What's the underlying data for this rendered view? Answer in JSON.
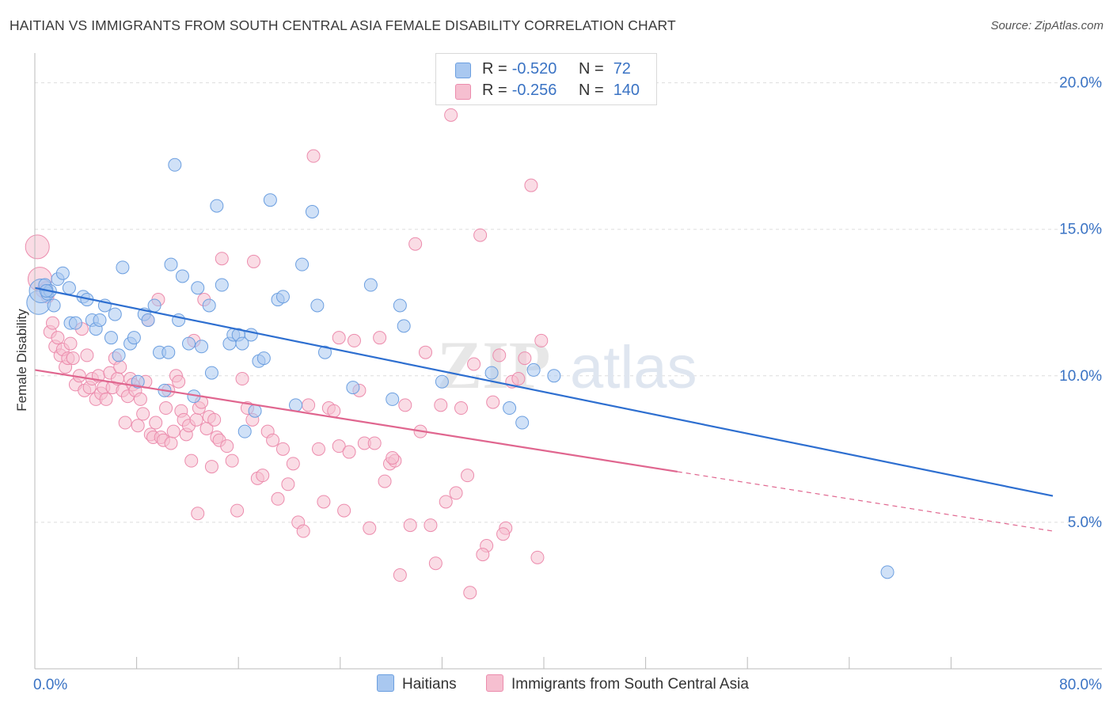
{
  "title": "HAITIAN VS IMMIGRANTS FROM SOUTH CENTRAL ASIA FEMALE DISABILITY CORRELATION CHART",
  "source": "Source: ZipAtlas.com",
  "watermark": {
    "zip": "ZIP",
    "atlas": "atlas"
  },
  "colors": {
    "blue_fill": "#a9c8f0",
    "blue_stroke": "#6c9fe0",
    "blue_line": "#2e6fd0",
    "pink_fill": "#f6bfd0",
    "pink_stroke": "#ec8cad",
    "pink_line": "#e0668f",
    "axis_text": "#3a73c4",
    "grid": "#dddddd"
  },
  "legend": {
    "rows": [
      {
        "r_label": "R =",
        "r_value": "-0.520",
        "n_label": "N =",
        "n_value": "72"
      },
      {
        "r_label": "R =",
        "r_value": "-0.256",
        "n_label": "N =",
        "n_value": "140"
      }
    ]
  },
  "bottom_legend": {
    "series1": "Haitians",
    "series2": "Immigrants from South Central Asia"
  },
  "chart_data": {
    "type": "scatter",
    "xlabel": "",
    "ylabel": "Female Disability",
    "xlim": [
      0,
      80
    ],
    "ylim": [
      0,
      20.8
    ],
    "x_tick_labels": [
      {
        "value": 0,
        "label": "0.0%"
      },
      {
        "value": 80,
        "label": "80.0%"
      }
    ],
    "y_tick_labels": [
      {
        "value": 5,
        "label": "5.0%"
      },
      {
        "value": 10,
        "label": "10.0%"
      },
      {
        "value": 15,
        "label": "15.0%"
      },
      {
        "value": 20,
        "label": "20.0%"
      }
    ],
    "x_minor_ticks": [
      8,
      16,
      24,
      32,
      40,
      48,
      56,
      64,
      72
    ],
    "grid": "horizontal dashed",
    "series": [
      {
        "name": "Haitians",
        "trendline": {
          "x": [
            0,
            80
          ],
          "y": [
            13.0,
            5.9
          ],
          "dashed_from": null
        },
        "points": [
          [
            0.3,
            12.5
          ],
          [
            0.5,
            12.9
          ],
          [
            0.8,
            13.1
          ],
          [
            1.0,
            12.8
          ],
          [
            1.2,
            12.9
          ],
          [
            1.5,
            12.4
          ],
          [
            1.8,
            13.3
          ],
          [
            2.2,
            13.5
          ],
          [
            2.7,
            13.0
          ],
          [
            2.8,
            11.8
          ],
          [
            3.2,
            11.8
          ],
          [
            3.8,
            12.7
          ],
          [
            4.1,
            12.6
          ],
          [
            4.5,
            11.9
          ],
          [
            4.8,
            11.6
          ],
          [
            5.1,
            11.9
          ],
          [
            5.5,
            12.4
          ],
          [
            6.0,
            11.3
          ],
          [
            6.3,
            12.1
          ],
          [
            6.6,
            10.7
          ],
          [
            6.9,
            13.7
          ],
          [
            7.5,
            11.1
          ],
          [
            7.8,
            11.3
          ],
          [
            8.1,
            9.8
          ],
          [
            8.6,
            12.1
          ],
          [
            8.9,
            11.9
          ],
          [
            9.4,
            12.4
          ],
          [
            9.8,
            10.8
          ],
          [
            10.2,
            9.5
          ],
          [
            10.5,
            10.8
          ],
          [
            10.7,
            13.8
          ],
          [
            11.0,
            17.2
          ],
          [
            11.3,
            11.9
          ],
          [
            11.6,
            13.4
          ],
          [
            12.1,
            11.1
          ],
          [
            12.5,
            9.3
          ],
          [
            12.8,
            13.0
          ],
          [
            13.1,
            11.0
          ],
          [
            13.7,
            12.4
          ],
          [
            13.9,
            10.1
          ],
          [
            14.3,
            15.8
          ],
          [
            14.7,
            13.1
          ],
          [
            15.3,
            11.1
          ],
          [
            15.6,
            11.4
          ],
          [
            16.0,
            11.4
          ],
          [
            16.3,
            11.1
          ],
          [
            16.5,
            8.1
          ],
          [
            17.0,
            11.4
          ],
          [
            17.3,
            8.8
          ],
          [
            17.6,
            10.5
          ],
          [
            18.0,
            10.6
          ],
          [
            18.5,
            16.0
          ],
          [
            19.1,
            12.6
          ],
          [
            19.5,
            12.7
          ],
          [
            20.5,
            9.0
          ],
          [
            21.0,
            13.8
          ],
          [
            21.8,
            15.6
          ],
          [
            22.2,
            12.4
          ],
          [
            22.8,
            10.8
          ],
          [
            25.0,
            9.6
          ],
          [
            26.4,
            13.1
          ],
          [
            28.1,
            9.2
          ],
          [
            28.7,
            12.4
          ],
          [
            29.0,
            11.7
          ],
          [
            32.0,
            9.8
          ],
          [
            35.9,
            10.1
          ],
          [
            37.3,
            8.9
          ],
          [
            38.3,
            8.4
          ],
          [
            39.2,
            10.2
          ],
          [
            40.8,
            10.0
          ],
          [
            67.0,
            3.3
          ],
          [
            0.9,
            12.9
          ]
        ]
      },
      {
        "name": "Immigrants from South Central Asia",
        "trendline": {
          "x": [
            0,
            80
          ],
          "y": [
            10.2,
            4.7
          ],
          "dashed_from": 50.5
        },
        "points": [
          [
            0.2,
            14.4
          ],
          [
            0.4,
            13.3
          ],
          [
            0.6,
            12.9
          ],
          [
            0.9,
            13.0
          ],
          [
            1.0,
            12.7
          ],
          [
            1.2,
            11.5
          ],
          [
            1.4,
            11.8
          ],
          [
            1.6,
            11.0
          ],
          [
            1.8,
            11.3
          ],
          [
            2.0,
            10.7
          ],
          [
            2.2,
            10.9
          ],
          [
            2.4,
            10.3
          ],
          [
            2.6,
            10.6
          ],
          [
            2.8,
            11.1
          ],
          [
            3.0,
            10.6
          ],
          [
            3.2,
            9.7
          ],
          [
            3.5,
            10.0
          ],
          [
            3.7,
            11.6
          ],
          [
            3.9,
            9.5
          ],
          [
            4.1,
            10.7
          ],
          [
            4.3,
            9.6
          ],
          [
            4.5,
            9.9
          ],
          [
            4.8,
            9.2
          ],
          [
            5.0,
            10.0
          ],
          [
            5.2,
            9.4
          ],
          [
            5.4,
            9.6
          ],
          [
            5.6,
            9.2
          ],
          [
            5.9,
            10.1
          ],
          [
            6.1,
            9.6
          ],
          [
            6.3,
            10.6
          ],
          [
            6.5,
            9.9
          ],
          [
            6.7,
            10.3
          ],
          [
            6.9,
            9.5
          ],
          [
            7.1,
            8.4
          ],
          [
            7.3,
            9.3
          ],
          [
            7.5,
            9.9
          ],
          [
            7.7,
            9.7
          ],
          [
            7.9,
            9.5
          ],
          [
            8.1,
            8.3
          ],
          [
            8.3,
            9.2
          ],
          [
            8.5,
            8.7
          ],
          [
            8.7,
            9.8
          ],
          [
            8.9,
            11.9
          ],
          [
            9.1,
            8.0
          ],
          [
            9.3,
            7.9
          ],
          [
            9.5,
            8.4
          ],
          [
            9.7,
            12.6
          ],
          [
            9.9,
            7.9
          ],
          [
            10.1,
            7.8
          ],
          [
            10.3,
            8.9
          ],
          [
            10.5,
            9.5
          ],
          [
            10.7,
            7.7
          ],
          [
            10.9,
            8.1
          ],
          [
            11.1,
            10.0
          ],
          [
            11.3,
            9.8
          ],
          [
            11.5,
            8.8
          ],
          [
            11.7,
            8.5
          ],
          [
            11.9,
            8.0
          ],
          [
            12.1,
            8.3
          ],
          [
            12.3,
            7.1
          ],
          [
            12.5,
            11.2
          ],
          [
            12.7,
            8.5
          ],
          [
            12.9,
            8.9
          ],
          [
            13.1,
            9.1
          ],
          [
            13.3,
            12.6
          ],
          [
            13.5,
            8.2
          ],
          [
            13.7,
            8.6
          ],
          [
            13.9,
            6.9
          ],
          [
            14.1,
            8.5
          ],
          [
            14.3,
            7.9
          ],
          [
            14.5,
            7.8
          ],
          [
            14.7,
            14.0
          ],
          [
            15.1,
            7.6
          ],
          [
            15.5,
            7.1
          ],
          [
            15.9,
            5.4
          ],
          [
            16.3,
            9.9
          ],
          [
            16.7,
            8.9
          ],
          [
            17.1,
            8.5
          ],
          [
            17.5,
            6.5
          ],
          [
            17.9,
            6.6
          ],
          [
            18.3,
            8.1
          ],
          [
            18.7,
            7.8
          ],
          [
            19.1,
            5.8
          ],
          [
            19.5,
            7.5
          ],
          [
            19.9,
            6.3
          ],
          [
            20.3,
            7.0
          ],
          [
            20.7,
            5.0
          ],
          [
            21.1,
            4.7
          ],
          [
            21.5,
            9.0
          ],
          [
            21.9,
            17.5
          ],
          [
            22.3,
            7.5
          ],
          [
            22.7,
            5.7
          ],
          [
            23.1,
            8.9
          ],
          [
            23.5,
            8.8
          ],
          [
            23.9,
            7.6
          ],
          [
            24.3,
            5.4
          ],
          [
            24.7,
            7.4
          ],
          [
            25.1,
            11.2
          ],
          [
            25.5,
            9.5
          ],
          [
            25.9,
            7.7
          ],
          [
            26.3,
            4.8
          ],
          [
            26.7,
            7.7
          ],
          [
            27.1,
            11.3
          ],
          [
            27.5,
            6.4
          ],
          [
            27.9,
            7.0
          ],
          [
            28.3,
            7.1
          ],
          [
            28.7,
            3.2
          ],
          [
            29.1,
            9.0
          ],
          [
            29.5,
            4.9
          ],
          [
            29.9,
            14.5
          ],
          [
            30.3,
            8.1
          ],
          [
            30.7,
            10.8
          ],
          [
            31.1,
            4.9
          ],
          [
            31.5,
            3.6
          ],
          [
            31.9,
            9.0
          ],
          [
            32.3,
            5.7
          ],
          [
            32.7,
            18.9
          ],
          [
            33.1,
            6.0
          ],
          [
            33.5,
            8.9
          ],
          [
            34.0,
            6.6
          ],
          [
            34.5,
            10.4
          ],
          [
            35.0,
            14.8
          ],
          [
            35.5,
            4.2
          ],
          [
            36.0,
            9.1
          ],
          [
            36.5,
            10.7
          ],
          [
            37.0,
            4.8
          ],
          [
            37.5,
            9.8
          ],
          [
            38.0,
            9.9
          ],
          [
            38.5,
            10.6
          ],
          [
            39.0,
            16.5
          ],
          [
            39.5,
            3.8
          ],
          [
            40.0,
            20.0
          ],
          [
            35.2,
            3.9
          ],
          [
            36.8,
            4.6
          ],
          [
            12.8,
            5.3
          ],
          [
            17.2,
            13.9
          ],
          [
            23.9,
            11.3
          ],
          [
            28.1,
            7.2
          ],
          [
            34.2,
            2.6
          ],
          [
            39.8,
            11.2
          ]
        ]
      }
    ]
  }
}
